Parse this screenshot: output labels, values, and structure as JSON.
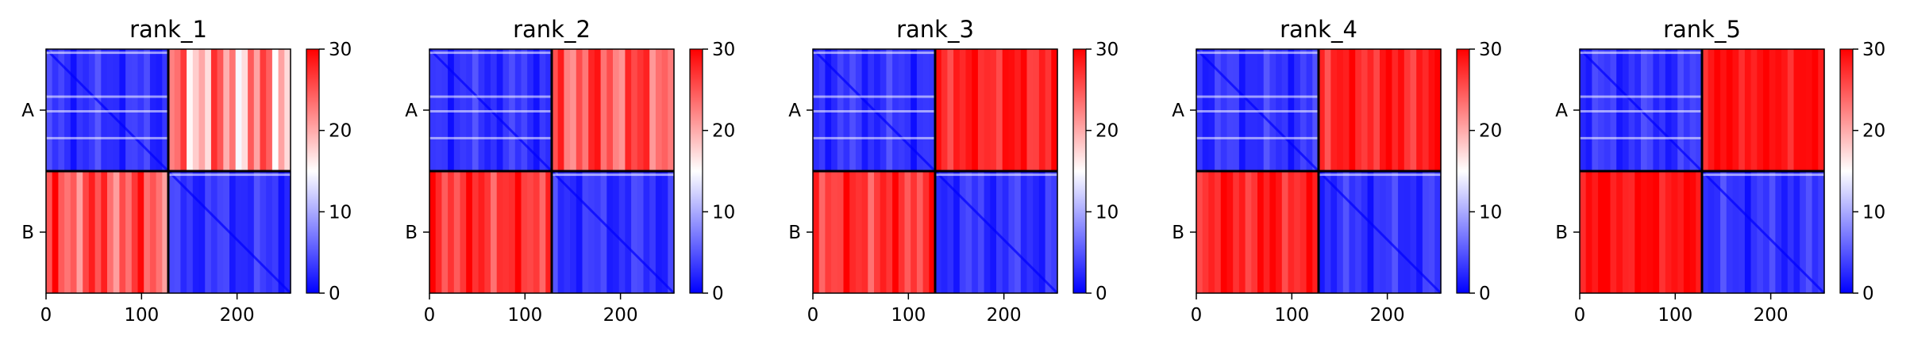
{
  "chart_data": [
    {
      "type": "heatmap",
      "title": "rank_1",
      "row_labels": [
        "A",
        "B"
      ],
      "x_ticks": [
        0,
        100,
        200
      ],
      "x_range": [
        0,
        256
      ],
      "colorbar": {
        "min": 0,
        "max": 30,
        "ticks": [
          0,
          10,
          20,
          30
        ],
        "colors": [
          "#0000ff",
          "#ffffff",
          "#ff0000"
        ]
      },
      "block_means": [
        [
          3,
          21
        ],
        [
          25,
          3
        ]
      ]
    },
    {
      "type": "heatmap",
      "title": "rank_2",
      "row_labels": [
        "A",
        "B"
      ],
      "x_ticks": [
        0,
        100,
        200
      ],
      "x_range": [
        0,
        256
      ],
      "colorbar": {
        "min": 0,
        "max": 30,
        "ticks": [
          0,
          10,
          20,
          30
        ],
        "colors": [
          "#0000ff",
          "#ffffff",
          "#ff0000"
        ]
      },
      "block_means": [
        [
          3,
          25
        ],
        [
          27,
          3
        ]
      ]
    },
    {
      "type": "heatmap",
      "title": "rank_3",
      "row_labels": [
        "A",
        "B"
      ],
      "x_ticks": [
        0,
        100,
        200
      ],
      "x_range": [
        0,
        256
      ],
      "colorbar": {
        "min": 0,
        "max": 30,
        "ticks": [
          0,
          10,
          20,
          30
        ],
        "colors": [
          "#0000ff",
          "#ffffff",
          "#ff0000"
        ]
      },
      "block_means": [
        [
          3,
          28
        ],
        [
          27,
          3
        ]
      ]
    },
    {
      "type": "heatmap",
      "title": "rank_4",
      "row_labels": [
        "A",
        "B"
      ],
      "x_ticks": [
        0,
        100,
        200
      ],
      "x_range": [
        0,
        256
      ],
      "colorbar": {
        "min": 0,
        "max": 30,
        "ticks": [
          0,
          10,
          20,
          30
        ],
        "colors": [
          "#0000ff",
          "#ffffff",
          "#ff0000"
        ]
      },
      "block_means": [
        [
          3,
          28
        ],
        [
          28,
          3
        ]
      ]
    },
    {
      "type": "heatmap",
      "title": "rank_5",
      "row_labels": [
        "A",
        "B"
      ],
      "x_ticks": [
        0,
        100,
        200
      ],
      "x_range": [
        0,
        256
      ],
      "colorbar": {
        "min": 0,
        "max": 30,
        "ticks": [
          0,
          10,
          20,
          30
        ],
        "colors": [
          "#0000ff",
          "#ffffff",
          "#ff0000"
        ]
      },
      "block_means": [
        [
          3,
          29
        ],
        [
          29,
          3
        ]
      ]
    }
  ]
}
